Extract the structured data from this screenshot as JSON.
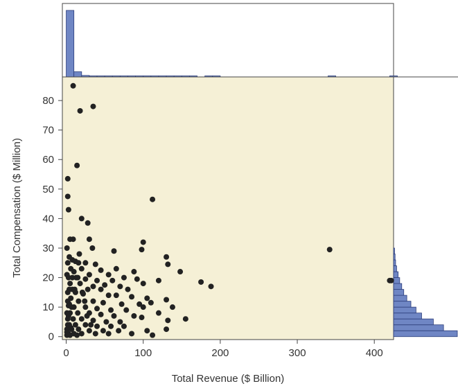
{
  "chart_data": {
    "type": "scatter",
    "title": "",
    "xlabel": "Total Revenue ($ Billion)",
    "ylabel": "Total Compensation ($ Million)",
    "xlim": [
      -5,
      425
    ],
    "ylim": [
      -1,
      88
    ],
    "x_ticks": [
      0,
      100,
      200,
      300,
      400
    ],
    "y_ticks": [
      0,
      10,
      20,
      30,
      40,
      50,
      60,
      70,
      80
    ],
    "grid": false,
    "legend": "none",
    "colors": {
      "plot_background": "#f5f0d6",
      "point": "#222222",
      "histogram_fill": "#6f86c4",
      "histogram_edge": "#2c3d7a"
    },
    "points": [
      [
        9,
        85
      ],
      [
        18,
        76.5
      ],
      [
        35,
        78
      ],
      [
        14,
        58
      ],
      [
        2,
        53.5
      ],
      [
        2,
        47.5
      ],
      [
        112,
        46.5
      ],
      [
        3,
        43
      ],
      [
        20,
        40
      ],
      [
        28,
        38.5
      ],
      [
        5,
        33
      ],
      [
        9,
        33
      ],
      [
        30,
        33
      ],
      [
        100,
        32
      ],
      [
        34,
        30
      ],
      [
        98,
        29.5
      ],
      [
        342,
        29.5
      ],
      [
        62,
        29
      ],
      [
        130,
        27
      ],
      [
        4,
        27
      ],
      [
        8,
        26
      ],
      [
        12,
        25.5
      ],
      [
        16,
        25
      ],
      [
        25,
        25
      ],
      [
        38,
        24.5
      ],
      [
        132,
        24.5
      ],
      [
        6,
        23
      ],
      [
        20,
        23
      ],
      [
        45,
        22.5
      ],
      [
        65,
        23
      ],
      [
        88,
        22
      ],
      [
        148,
        22
      ],
      [
        10,
        22
      ],
      [
        30,
        21
      ],
      [
        55,
        21
      ],
      [
        75,
        20
      ],
      [
        3,
        20
      ],
      [
        15,
        20
      ],
      [
        25,
        19.5
      ],
      [
        40,
        19
      ],
      [
        60,
        19
      ],
      [
        92,
        19.5
      ],
      [
        120,
        19
      ],
      [
        175,
        18.5
      ],
      [
        188,
        17
      ],
      [
        420,
        19
      ],
      [
        422,
        19
      ],
      [
        5,
        18
      ],
      [
        18,
        18
      ],
      [
        35,
        17
      ],
      [
        50,
        17.5
      ],
      [
        70,
        17
      ],
      [
        100,
        18
      ],
      [
        8,
        16
      ],
      [
        28,
        16
      ],
      [
        45,
        16
      ],
      [
        80,
        16
      ],
      [
        2,
        15
      ],
      [
        12,
        15
      ],
      [
        22,
        14.5
      ],
      [
        55,
        14
      ],
      [
        65,
        14
      ],
      [
        85,
        13.5
      ],
      [
        105,
        13
      ],
      [
        130,
        12.5
      ],
      [
        6,
        13
      ],
      [
        16,
        12
      ],
      [
        35,
        12
      ],
      [
        48,
        11.5
      ],
      [
        72,
        11
      ],
      [
        95,
        11
      ],
      [
        110,
        11.5
      ],
      [
        3,
        10.5
      ],
      [
        10,
        10
      ],
      [
        25,
        10
      ],
      [
        40,
        9.5
      ],
      [
        58,
        9
      ],
      [
        78,
        9
      ],
      [
        100,
        10
      ],
      [
        138,
        10
      ],
      [
        5,
        8
      ],
      [
        15,
        8
      ],
      [
        30,
        8
      ],
      [
        45,
        7.5
      ],
      [
        62,
        7
      ],
      [
        88,
        7
      ],
      [
        120,
        8
      ],
      [
        2,
        6
      ],
      [
        9,
        6
      ],
      [
        20,
        6
      ],
      [
        35,
        5.5
      ],
      [
        52,
        5
      ],
      [
        70,
        5
      ],
      [
        98,
        6.5
      ],
      [
        132,
        5.5
      ],
      [
        155,
        6
      ],
      [
        4,
        4
      ],
      [
        12,
        4
      ],
      [
        25,
        4
      ],
      [
        40,
        3.5
      ],
      [
        58,
        3.5
      ],
      [
        75,
        3.5
      ],
      [
        1,
        2.5
      ],
      [
        7,
        2.5
      ],
      [
        16,
        2.5
      ],
      [
        30,
        2
      ],
      [
        48,
        2
      ],
      [
        68,
        2
      ],
      [
        105,
        2
      ],
      [
        130,
        2.5
      ],
      [
        3,
        1
      ],
      [
        10,
        1
      ],
      [
        20,
        1
      ],
      [
        38,
        1
      ],
      [
        55,
        1
      ],
      [
        85,
        1
      ],
      [
        112,
        0.5
      ],
      [
        1,
        0.5
      ],
      [
        5,
        0.5
      ],
      [
        14,
        0.5
      ],
      [
        1,
        30
      ],
      [
        2,
        25
      ],
      [
        1,
        21
      ],
      [
        4,
        16
      ],
      [
        2,
        12
      ],
      [
        7,
        10
      ],
      [
        1,
        8
      ],
      [
        3,
        7
      ],
      [
        6,
        3
      ],
      [
        11,
        16
      ],
      [
        13,
        20
      ],
      [
        17,
        28
      ],
      [
        21,
        15
      ],
      [
        24,
        12
      ],
      [
        27,
        7
      ],
      [
        32,
        4
      ],
      [
        8,
        20
      ],
      [
        4,
        11
      ],
      [
        2,
        4
      ],
      [
        1,
        1.5
      ]
    ],
    "x_marginal_histogram": {
      "bin_width": 10,
      "start": 0,
      "counts": [
        180,
        14,
        4,
        2,
        2,
        2,
        1,
        1,
        1,
        1,
        1,
        1,
        1,
        1,
        1,
        1,
        1,
        0,
        1,
        1,
        0,
        0,
        0,
        0,
        0,
        0,
        0,
        0,
        0,
        0,
        0,
        0,
        0,
        0,
        1,
        0,
        0,
        0,
        0,
        0,
        0,
        0,
        1
      ]
    },
    "y_marginal_histogram": {
      "bin_width": 2,
      "start": 0,
      "counts": [
        125,
        98,
        78,
        55,
        44,
        34,
        26,
        20,
        16,
        12,
        9,
        6,
        4,
        3,
        2
      ]
    }
  }
}
